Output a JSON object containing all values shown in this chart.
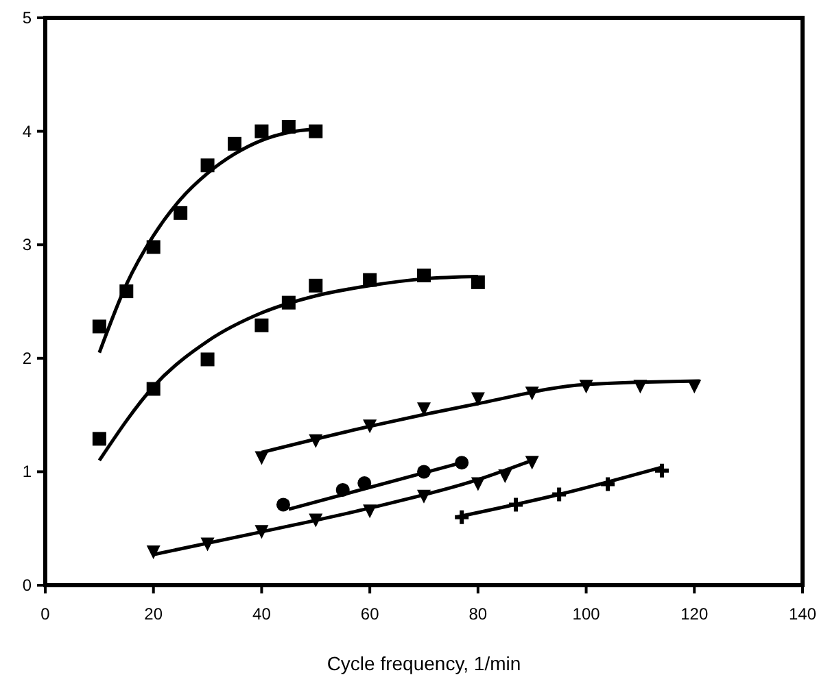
{
  "chart_data": {
    "type": "scatter",
    "xlabel": "Cycle frequency, 1/min",
    "xlim": [
      0,
      140
    ],
    "xticks": [
      0,
      20,
      40,
      60,
      80,
      100,
      120,
      140
    ],
    "ylim": [
      0,
      5
    ],
    "yticks": [
      0,
      1,
      2,
      3,
      4,
      5
    ],
    "grid": false,
    "series": [
      {
        "marker": "square",
        "color": "#000000",
        "x": [
          10,
          15,
          20,
          25,
          30,
          35,
          40,
          45,
          50
        ],
        "values": [
          2.28,
          2.59,
          2.98,
          3.28,
          3.7,
          3.89,
          4.0,
          4.04,
          4.0
        ]
      },
      {
        "marker": "square",
        "color": "#000000",
        "x": [
          10,
          20,
          30,
          40,
          45,
          50,
          60,
          70,
          80
        ],
        "values": [
          1.29,
          1.73,
          1.99,
          2.29,
          2.49,
          2.64,
          2.69,
          2.73,
          2.67
        ]
      },
      {
        "marker": "triangle",
        "color": "#000000",
        "x": [
          40,
          50,
          60,
          70,
          80,
          90,
          100,
          110,
          120
        ],
        "values": [
          1.12,
          1.27,
          1.4,
          1.55,
          1.64,
          1.69,
          1.75,
          1.75,
          1.75
        ]
      },
      {
        "marker": "circle",
        "color": "#000000",
        "x": [
          44,
          55,
          59,
          70,
          77
        ],
        "values": [
          0.71,
          0.84,
          0.9,
          1.0,
          1.08
        ]
      },
      {
        "marker": "triangle",
        "color": "#000000",
        "x": [
          20,
          30,
          40,
          50,
          60,
          70,
          80,
          85,
          90
        ],
        "values": [
          0.29,
          0.36,
          0.47,
          0.57,
          0.65,
          0.78,
          0.89,
          0.96,
          1.08
        ]
      },
      {
        "marker": "cross",
        "color": "#000000",
        "x": [
          77,
          87,
          95,
          104,
          114
        ],
        "values": [
          0.6,
          0.71,
          0.8,
          0.89,
          1.01
        ]
      },
      {
        "type": "line",
        "marker": "none",
        "color": "#000000",
        "x": [
          10,
          15,
          20,
          25,
          30,
          35,
          40,
          45,
          50
        ],
        "values": [
          2.05,
          2.65,
          3.08,
          3.4,
          3.63,
          3.8,
          3.92,
          3.99,
          4.02
        ]
      },
      {
        "type": "line",
        "marker": "none",
        "color": "#000000",
        "x": [
          10,
          20,
          30,
          40,
          50,
          60,
          70,
          80
        ],
        "values": [
          1.1,
          1.75,
          2.15,
          2.4,
          2.55,
          2.64,
          2.7,
          2.72
        ]
      },
      {
        "type": "line",
        "marker": "none",
        "color": "#000000",
        "x": [
          40,
          60,
          80,
          100,
          121
        ],
        "values": [
          1.17,
          1.4,
          1.6,
          1.77,
          1.8
        ]
      },
      {
        "type": "line",
        "marker": "none",
        "color": "#000000",
        "x": [
          45,
          77
        ],
        "values": [
          0.67,
          1.08
        ]
      },
      {
        "type": "line",
        "marker": "none",
        "color": "#000000",
        "x": [
          20,
          40,
          60,
          80,
          90
        ],
        "values": [
          0.27,
          0.47,
          0.68,
          0.93,
          1.1
        ]
      },
      {
        "type": "line",
        "marker": "none",
        "color": "#000000",
        "x": [
          76,
          95,
          114
        ],
        "values": [
          0.6,
          0.8,
          1.04
        ]
      }
    ]
  }
}
